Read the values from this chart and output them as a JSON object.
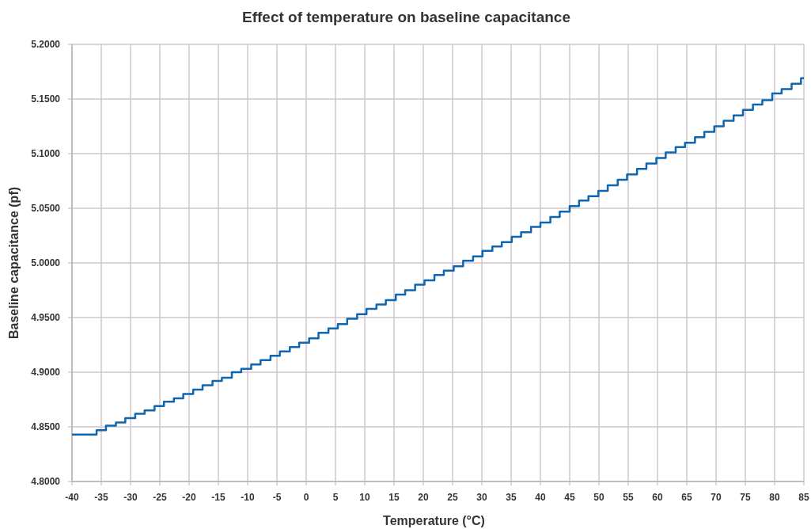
{
  "chart_data": {
    "type": "step",
    "title": "Effect of temperature on baseline capacitance",
    "xlabel": "Temperature (°C)",
    "ylabel": "Baseline capacitance (pf)",
    "xlim": [
      -40,
      85
    ],
    "xticks": [
      -40,
      -35,
      -30,
      -25,
      -20,
      -15,
      -10,
      -5,
      0,
      5,
      10,
      15,
      20,
      25,
      30,
      35,
      40,
      45,
      50,
      55,
      60,
      65,
      70,
      75,
      80,
      85
    ],
    "ylim": [
      4.8,
      5.2
    ],
    "yticks": [
      {
        "value": 4.8,
        "label": "4.8000"
      },
      {
        "value": 4.85,
        "label": "4.8500"
      },
      {
        "value": 4.9,
        "label": "4.9000"
      },
      {
        "value": 4.95,
        "label": "4.9500"
      },
      {
        "value": 5.0,
        "label": "5.0000"
      },
      {
        "value": 5.05,
        "label": "5.0500"
      },
      {
        "value": 5.1,
        "label": "5.1000"
      },
      {
        "value": 5.15,
        "label": "5.1500"
      },
      {
        "value": 5.2,
        "label": "5.2000"
      }
    ],
    "grid": true,
    "series": [
      {
        "color": "#0f66b0",
        "x": [
          -40,
          -35.8,
          -34.2,
          -32.5,
          -30.9,
          -29.2,
          -27.6,
          -25.9,
          -24.3,
          -22.6,
          -21.0,
          -19.3,
          -17.7,
          -16.0,
          -14.4,
          -12.7,
          -11.1,
          -9.4,
          -7.8,
          -6.1,
          -4.5,
          -2.8,
          -1.2,
          0.5,
          2.1,
          3.8,
          5.4,
          7.0,
          8.7,
          10.3,
          12.0,
          13.6,
          15.3,
          16.9,
          18.6,
          20.2,
          21.9,
          23.5,
          25.2,
          26.8,
          28.5,
          30.1,
          31.8,
          33.4,
          35.1,
          36.7,
          38.4,
          40.0,
          41.7,
          43.3,
          45.0,
          46.6,
          48.2,
          49.9,
          51.5,
          53.2,
          54.8,
          56.5,
          58.1,
          59.8,
          61.4,
          63.1,
          64.7,
          66.4,
          68.0,
          69.7,
          71.3,
          73.0,
          74.6,
          76.3,
          77.9,
          79.6,
          81.2,
          82.9,
          84.5,
          85
        ],
        "values": [
          4.843,
          4.847,
          4.851,
          4.854,
          4.858,
          4.862,
          4.865,
          4.869,
          4.873,
          4.876,
          4.88,
          4.884,
          4.888,
          4.892,
          4.895,
          4.9,
          4.903,
          4.907,
          4.911,
          4.915,
          4.919,
          4.923,
          4.927,
          4.931,
          4.936,
          4.94,
          4.944,
          4.949,
          4.953,
          4.958,
          4.962,
          4.966,
          4.971,
          4.975,
          4.98,
          4.984,
          4.989,
          4.993,
          4.997,
          5.002,
          5.006,
          5.011,
          5.015,
          5.019,
          5.024,
          5.028,
          5.033,
          5.037,
          5.042,
          5.047,
          5.052,
          5.057,
          5.061,
          5.066,
          5.071,
          5.076,
          5.081,
          5.086,
          5.091,
          5.096,
          5.101,
          5.106,
          5.11,
          5.115,
          5.12,
          5.125,
          5.13,
          5.135,
          5.14,
          5.145,
          5.149,
          5.155,
          5.159,
          5.164,
          5.169,
          5.169
        ]
      }
    ]
  }
}
